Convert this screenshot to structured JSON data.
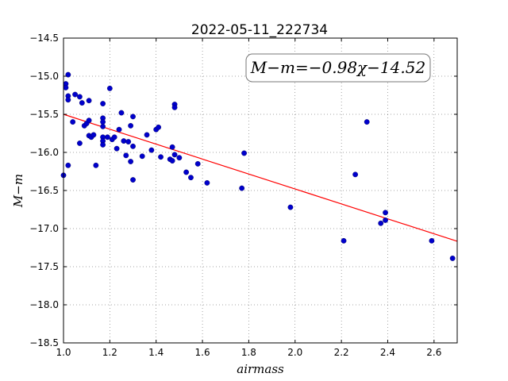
{
  "chart_data": {
    "type": "scatter",
    "title": "2022-05-11_222734",
    "xlabel": "airmass",
    "ylabel": "M−m",
    "xlim": [
      1.0,
      2.7
    ],
    "ylim": [
      -18.5,
      -14.5
    ],
    "xticks": [
      1.0,
      1.2,
      1.4,
      1.6,
      1.8,
      2.0,
      2.2,
      2.4,
      2.6
    ],
    "yticks": [
      -14.5,
      -15.0,
      -15.5,
      -16.0,
      -16.5,
      -17.0,
      -17.5,
      -18.0,
      -18.5
    ],
    "xtick_labels": [
      "1.0",
      "1.2",
      "1.4",
      "1.6",
      "1.8",
      "2.0",
      "2.2",
      "2.4",
      "2.6"
    ],
    "ytick_labels": [
      "−14.5",
      "−15.0",
      "−15.5",
      "−16.0",
      "−16.5",
      "−17.0",
      "−17.5",
      "−18.0",
      "−18.5"
    ],
    "grid": true,
    "annotation": "M−m=−0.98χ−14.52",
    "fit": {
      "slope": -0.98,
      "intercept": -14.52,
      "color": "#ff0000"
    },
    "point_color": "#0000cc",
    "points": [
      [
        1.0,
        -16.3
      ],
      [
        1.01,
        -15.1
      ],
      [
        1.01,
        -15.15
      ],
      [
        1.02,
        -14.98
      ],
      [
        1.02,
        -15.26
      ],
      [
        1.02,
        -15.31
      ],
      [
        1.02,
        -16.17
      ],
      [
        1.04,
        -15.6
      ],
      [
        1.05,
        -15.24
      ],
      [
        1.07,
        -15.27
      ],
      [
        1.07,
        -15.88
      ],
      [
        1.08,
        -15.35
      ],
      [
        1.09,
        -15.65
      ],
      [
        1.1,
        -15.62
      ],
      [
        1.11,
        -15.58
      ],
      [
        1.11,
        -15.32
      ],
      [
        1.11,
        -15.78
      ],
      [
        1.12,
        -15.8
      ],
      [
        1.13,
        -15.77
      ],
      [
        1.14,
        -16.17
      ],
      [
        1.17,
        -15.36
      ],
      [
        1.17,
        -15.55
      ],
      [
        1.17,
        -15.6
      ],
      [
        1.17,
        -15.66
      ],
      [
        1.17,
        -15.8
      ],
      [
        1.17,
        -15.85
      ],
      [
        1.17,
        -15.9
      ],
      [
        1.19,
        -15.8
      ],
      [
        1.2,
        -15.16
      ],
      [
        1.21,
        -15.83
      ],
      [
        1.22,
        -15.8
      ],
      [
        1.23,
        -15.95
      ],
      [
        1.24,
        -15.7
      ],
      [
        1.25,
        -15.48
      ],
      [
        1.26,
        -15.85
      ],
      [
        1.27,
        -16.04
      ],
      [
        1.28,
        -15.86
      ],
      [
        1.29,
        -15.65
      ],
      [
        1.29,
        -16.12
      ],
      [
        1.3,
        -15.53
      ],
      [
        1.3,
        -15.92
      ],
      [
        1.3,
        -16.36
      ],
      [
        1.34,
        -16.05
      ],
      [
        1.36,
        -15.77
      ],
      [
        1.38,
        -15.97
      ],
      [
        1.4,
        -15.7
      ],
      [
        1.41,
        -15.67
      ],
      [
        1.42,
        -16.06
      ],
      [
        1.46,
        -16.09
      ],
      [
        1.47,
        -15.93
      ],
      [
        1.47,
        -16.11
      ],
      [
        1.48,
        -15.37
      ],
      [
        1.48,
        -15.41
      ],
      [
        1.48,
        -16.03
      ],
      [
        1.5,
        -16.07
      ],
      [
        1.53,
        -16.26
      ],
      [
        1.55,
        -16.33
      ],
      [
        1.58,
        -16.15
      ],
      [
        1.62,
        -16.4
      ],
      [
        1.77,
        -16.47
      ],
      [
        1.78,
        -16.01
      ],
      [
        1.98,
        -16.72
      ],
      [
        2.21,
        -17.16
      ],
      [
        2.26,
        -16.29
      ],
      [
        2.31,
        -15.6
      ],
      [
        2.37,
        -16.93
      ],
      [
        2.39,
        -16.79
      ],
      [
        2.39,
        -16.89
      ],
      [
        2.59,
        -17.16
      ],
      [
        2.68,
        -17.39
      ]
    ]
  }
}
